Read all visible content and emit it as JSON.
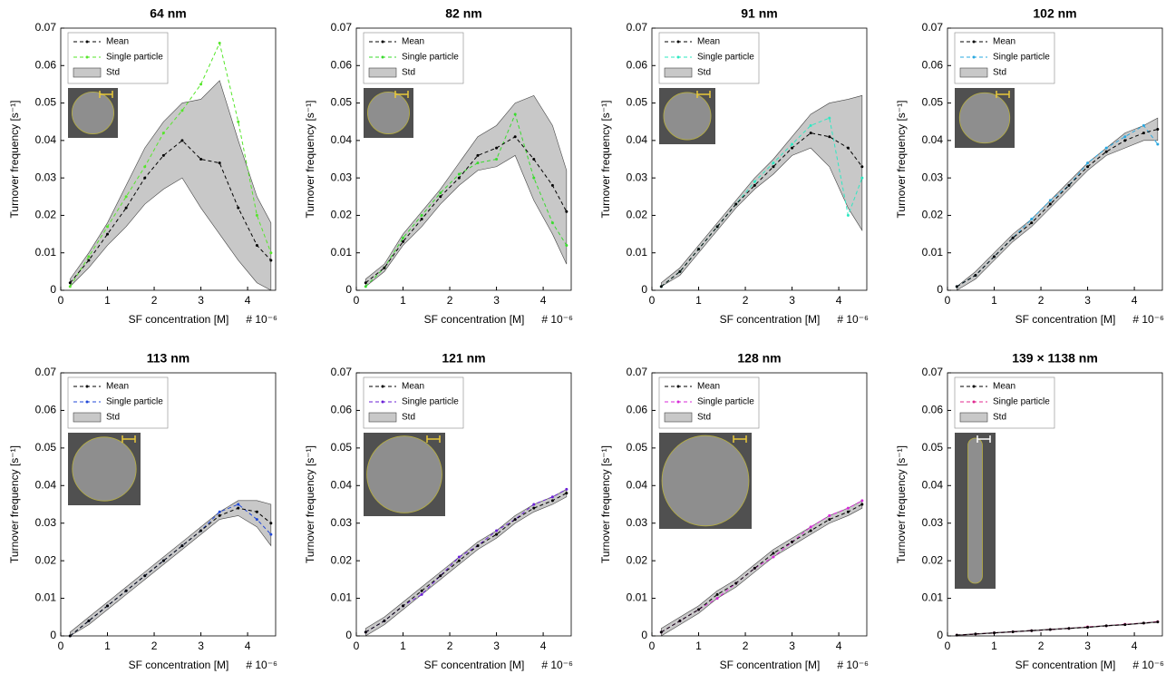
{
  "chart_data": [
    {
      "type": "line",
      "title": "64 nm",
      "title_color": "#55e62a",
      "xlabel": "SF concentration [M]",
      "x_multiplier": "# 10⁻⁶",
      "ylabel": "Turnover frequency [s⁻¹]",
      "x": [
        0.2,
        0.6,
        1.0,
        1.4,
        1.8,
        2.2,
        2.6,
        3.0,
        3.4,
        3.8,
        4.2,
        4.5
      ],
      "series": [
        {
          "name": "Mean",
          "color": "#000000",
          "values": [
            0.002,
            0.008,
            0.015,
            0.022,
            0.03,
            0.036,
            0.04,
            0.035,
            0.034,
            0.022,
            0.012,
            0.008
          ]
        },
        {
          "name": "Single particle",
          "color": "#55e62a",
          "values": [
            0.001,
            0.009,
            0.017,
            0.025,
            0.033,
            0.042,
            0.048,
            0.055,
            0.066,
            0.045,
            0.02,
            0.01
          ]
        },
        {
          "name": "Std",
          "color": "#c8c8c8",
          "upper": [
            0.003,
            0.01,
            0.018,
            0.028,
            0.038,
            0.045,
            0.05,
            0.051,
            0.056,
            0.04,
            0.025,
            0.018
          ],
          "lower": [
            0.001,
            0.006,
            0.012,
            0.017,
            0.023,
            0.027,
            0.03,
            0.022,
            0.015,
            0.008,
            0.002,
            0.0
          ]
        }
      ],
      "xlim": [
        0,
        4.6
      ],
      "xticks": [
        0,
        1,
        2,
        3,
        4
      ],
      "ylim": [
        0,
        0.07
      ],
      "yticks": [
        0,
        0.01,
        0.02,
        0.03,
        0.04,
        0.05,
        0.06,
        0.07
      ],
      "legend": "upper left"
    },
    {
      "type": "line",
      "title": "82 nm",
      "title_color": "#3adb2e",
      "xlabel": "SF concentration [M]",
      "x_multiplier": "# 10⁻⁶",
      "ylabel": "Turnover frequency [s⁻¹]",
      "x": [
        0.2,
        0.6,
        1.0,
        1.4,
        1.8,
        2.2,
        2.6,
        3.0,
        3.4,
        3.8,
        4.2,
        4.5
      ],
      "series": [
        {
          "name": "Mean",
          "color": "#000000",
          "values": [
            0.002,
            0.006,
            0.013,
            0.019,
            0.025,
            0.03,
            0.036,
            0.038,
            0.041,
            0.035,
            0.028,
            0.021
          ]
        },
        {
          "name": "Single particle",
          "color": "#3adb2e",
          "values": [
            0.001,
            0.006,
            0.014,
            0.02,
            0.026,
            0.031,
            0.034,
            0.035,
            0.047,
            0.03,
            0.018,
            0.012
          ]
        },
        {
          "name": "Std",
          "color": "#c8c8c8",
          "upper": [
            0.003,
            0.007,
            0.015,
            0.021,
            0.027,
            0.034,
            0.041,
            0.044,
            0.05,
            0.052,
            0.044,
            0.032
          ],
          "lower": [
            0.001,
            0.005,
            0.012,
            0.017,
            0.023,
            0.028,
            0.032,
            0.033,
            0.036,
            0.024,
            0.015,
            0.007
          ]
        }
      ],
      "xlim": [
        0,
        4.6
      ],
      "xticks": [
        0,
        1,
        2,
        3,
        4
      ],
      "ylim": [
        0,
        0.07
      ],
      "yticks": [
        0,
        0.01,
        0.02,
        0.03,
        0.04,
        0.05,
        0.06,
        0.07
      ],
      "legend": "upper left"
    },
    {
      "type": "line",
      "title": "91 nm",
      "title_color": "#2ee8c2",
      "xlabel": "SF concentration [M]",
      "x_multiplier": "# 10⁻⁶",
      "ylabel": "Turnover frequency [s⁻¹]",
      "x": [
        0.2,
        0.6,
        1.0,
        1.4,
        1.8,
        2.2,
        2.6,
        3.0,
        3.4,
        3.8,
        4.2,
        4.5
      ],
      "series": [
        {
          "name": "Mean",
          "color": "#000000",
          "values": [
            0.001,
            0.005,
            0.011,
            0.017,
            0.023,
            0.028,
            0.033,
            0.038,
            0.042,
            0.041,
            0.038,
            0.033
          ]
        },
        {
          "name": "Single particle",
          "color": "#2ee8c2",
          "values": [
            0.001,
            0.005,
            0.011,
            0.017,
            0.023,
            0.029,
            0.034,
            0.039,
            0.044,
            0.046,
            0.02,
            0.03
          ]
        },
        {
          "name": "Std",
          "color": "#c8c8c8",
          "upper": [
            0.002,
            0.006,
            0.012,
            0.018,
            0.024,
            0.03,
            0.035,
            0.041,
            0.047,
            0.05,
            0.051,
            0.052
          ],
          "lower": [
            0.001,
            0.004,
            0.01,
            0.016,
            0.022,
            0.027,
            0.031,
            0.036,
            0.038,
            0.033,
            0.022,
            0.016
          ]
        }
      ],
      "xlim": [
        0,
        4.6
      ],
      "xticks": [
        0,
        1,
        2,
        3,
        4
      ],
      "ylim": [
        0,
        0.07
      ],
      "yticks": [
        0,
        0.01,
        0.02,
        0.03,
        0.04,
        0.05,
        0.06,
        0.07
      ],
      "legend": "upper left"
    },
    {
      "type": "line",
      "title": "102 nm",
      "title_color": "#29a8e0",
      "xlabel": "SF concentration [M]",
      "x_multiplier": "# 10⁻⁶",
      "ylabel": "Turnover frequency [s⁻¹]",
      "x": [
        0.2,
        0.6,
        1.0,
        1.4,
        1.8,
        2.2,
        2.6,
        3.0,
        3.4,
        3.8,
        4.2,
        4.5
      ],
      "series": [
        {
          "name": "Mean",
          "color": "#000000",
          "values": [
            0.001,
            0.004,
            0.009,
            0.014,
            0.018,
            0.023,
            0.028,
            0.033,
            0.037,
            0.04,
            0.042,
            0.043
          ]
        },
        {
          "name": "Single particle",
          "color": "#29a8e0",
          "values": [
            0.001,
            0.004,
            0.009,
            0.014,
            0.019,
            0.024,
            0.028,
            0.034,
            0.038,
            0.041,
            0.044,
            0.039
          ]
        },
        {
          "name": "Std",
          "color": "#c8c8c8",
          "upper": [
            0.001,
            0.005,
            0.01,
            0.015,
            0.019,
            0.024,
            0.029,
            0.034,
            0.038,
            0.042,
            0.044,
            0.046
          ],
          "lower": [
            0.0,
            0.003,
            0.008,
            0.013,
            0.017,
            0.022,
            0.027,
            0.032,
            0.036,
            0.038,
            0.04,
            0.04
          ]
        }
      ],
      "xlim": [
        0,
        4.6
      ],
      "xticks": [
        0,
        1,
        2,
        3,
        4
      ],
      "ylim": [
        0,
        0.07
      ],
      "yticks": [
        0,
        0.01,
        0.02,
        0.03,
        0.04,
        0.05,
        0.06,
        0.07
      ],
      "legend": "upper left"
    },
    {
      "type": "line",
      "title": "113 nm",
      "title_color": "#2048d8",
      "xlabel": "SF concentration [M]",
      "x_multiplier": "# 10⁻⁶",
      "ylabel": "Turnover frequency [s⁻¹]",
      "x": [
        0.2,
        0.6,
        1.0,
        1.4,
        1.8,
        2.2,
        2.6,
        3.0,
        3.4,
        3.8,
        4.2,
        4.5
      ],
      "series": [
        {
          "name": "Mean",
          "color": "#000000",
          "values": [
            0.0,
            0.004,
            0.008,
            0.012,
            0.016,
            0.02,
            0.024,
            0.028,
            0.032,
            0.034,
            0.033,
            0.03
          ]
        },
        {
          "name": "Single particle",
          "color": "#2048d8",
          "values": [
            0.0,
            0.004,
            0.008,
            0.012,
            0.016,
            0.02,
            0.024,
            0.028,
            0.033,
            0.035,
            0.031,
            0.027
          ]
        },
        {
          "name": "Std",
          "color": "#c8c8c8",
          "upper": [
            0.001,
            0.005,
            0.009,
            0.013,
            0.017,
            0.021,
            0.025,
            0.029,
            0.033,
            0.036,
            0.036,
            0.035
          ],
          "lower": [
            0.0,
            0.003,
            0.007,
            0.011,
            0.015,
            0.019,
            0.023,
            0.027,
            0.031,
            0.032,
            0.029,
            0.024
          ]
        }
      ],
      "xlim": [
        0,
        4.6
      ],
      "xticks": [
        0,
        1,
        2,
        3,
        4
      ],
      "ylim": [
        0,
        0.07
      ],
      "yticks": [
        0,
        0.01,
        0.02,
        0.03,
        0.04,
        0.05,
        0.06,
        0.07
      ],
      "legend": "upper left"
    },
    {
      "type": "line",
      "title": "121 nm",
      "title_color": "#6a1fd6",
      "xlabel": "SF concentration [M]",
      "x_multiplier": "# 10⁻⁶",
      "ylabel": "Turnover frequency [s⁻¹]",
      "x": [
        0.2,
        0.6,
        1.0,
        1.4,
        1.8,
        2.2,
        2.6,
        3.0,
        3.4,
        3.8,
        4.2,
        4.5
      ],
      "series": [
        {
          "name": "Mean",
          "color": "#000000",
          "values": [
            0.001,
            0.004,
            0.008,
            0.012,
            0.016,
            0.02,
            0.024,
            0.027,
            0.031,
            0.034,
            0.036,
            0.038
          ]
        },
        {
          "name": "Single particle",
          "color": "#6a1fd6",
          "values": [
            0.001,
            0.004,
            0.008,
            0.011,
            0.016,
            0.021,
            0.024,
            0.028,
            0.031,
            0.035,
            0.037,
            0.039
          ]
        },
        {
          "name": "Std",
          "color": "#c8c8c8",
          "upper": [
            0.002,
            0.005,
            0.009,
            0.013,
            0.017,
            0.021,
            0.025,
            0.028,
            0.032,
            0.035,
            0.037,
            0.039
          ],
          "lower": [
            0.0,
            0.003,
            0.007,
            0.011,
            0.015,
            0.019,
            0.023,
            0.026,
            0.03,
            0.033,
            0.035,
            0.037
          ]
        }
      ],
      "xlim": [
        0,
        4.6
      ],
      "xticks": [
        0,
        1,
        2,
        3,
        4
      ],
      "ylim": [
        0,
        0.07
      ],
      "yticks": [
        0,
        0.01,
        0.02,
        0.03,
        0.04,
        0.05,
        0.06,
        0.07
      ],
      "legend": "upper left"
    },
    {
      "type": "line",
      "title": "128 nm",
      "title_color": "#d82ad8",
      "xlabel": "SF concentration [M]",
      "x_multiplier": "# 10⁻⁶",
      "ylabel": "Turnover frequency [s⁻¹]",
      "x": [
        0.2,
        0.6,
        1.0,
        1.4,
        1.8,
        2.2,
        2.6,
        3.0,
        3.4,
        3.8,
        4.2,
        4.5
      ],
      "series": [
        {
          "name": "Mean",
          "color": "#000000",
          "values": [
            0.001,
            0.004,
            0.007,
            0.011,
            0.014,
            0.018,
            0.022,
            0.025,
            0.028,
            0.031,
            0.033,
            0.035
          ]
        },
        {
          "name": "Single particle",
          "color": "#d82ad8",
          "values": [
            0.001,
            0.004,
            0.007,
            0.01,
            0.014,
            0.018,
            0.021,
            0.025,
            0.029,
            0.032,
            0.034,
            0.036
          ]
        },
        {
          "name": "Std",
          "color": "#c8c8c8",
          "upper": [
            0.002,
            0.005,
            0.008,
            0.012,
            0.015,
            0.019,
            0.023,
            0.026,
            0.029,
            0.032,
            0.034,
            0.036
          ],
          "lower": [
            0.0,
            0.003,
            0.006,
            0.01,
            0.013,
            0.017,
            0.021,
            0.024,
            0.027,
            0.03,
            0.032,
            0.034
          ]
        }
      ],
      "xlim": [
        0,
        4.6
      ],
      "xticks": [
        0,
        1,
        2,
        3,
        4
      ],
      "ylim": [
        0,
        0.07
      ],
      "yticks": [
        0,
        0.01,
        0.02,
        0.03,
        0.04,
        0.05,
        0.06,
        0.07
      ],
      "legend": "upper left"
    },
    {
      "type": "line",
      "title": "139 × 1138 nm",
      "title_color": "#e0288f",
      "xlabel": "SF concentration [M]",
      "x_multiplier": "# 10⁻⁶",
      "ylabel": "Turnover frequency [s⁻¹]",
      "x": [
        0.2,
        0.6,
        1.0,
        1.4,
        1.8,
        2.2,
        2.6,
        3.0,
        3.4,
        3.8,
        4.2,
        4.5
      ],
      "series": [
        {
          "name": "Mean",
          "color": "#000000",
          "values": [
            0.0002,
            0.0005,
            0.0008,
            0.0011,
            0.0014,
            0.0017,
            0.002,
            0.0023,
            0.0027,
            0.003,
            0.0034,
            0.0037
          ]
        },
        {
          "name": "Single particle",
          "color": "#e0288f",
          "values": [
            0.0002,
            0.0005,
            0.0008,
            0.0011,
            0.0014,
            0.0017,
            0.002,
            0.0024,
            0.0027,
            0.0031,
            0.0034,
            0.0038
          ]
        },
        {
          "name": "Std",
          "color": "#c8c8c8",
          "upper": [
            0.0003,
            0.0006,
            0.0009,
            0.0012,
            0.0015,
            0.0018,
            0.0021,
            0.0024,
            0.0028,
            0.0031,
            0.0035,
            0.0038
          ],
          "lower": [
            0.0001,
            0.0004,
            0.0007,
            0.001,
            0.0013,
            0.0016,
            0.0019,
            0.0022,
            0.0026,
            0.0029,
            0.0033,
            0.0036
          ]
        }
      ],
      "xlim": [
        0,
        4.6
      ],
      "xticks": [
        0,
        1,
        2,
        3,
        4
      ],
      "ylim": [
        0,
        0.07
      ],
      "yticks": [
        0,
        0.01,
        0.02,
        0.03,
        0.04,
        0.05,
        0.06,
        0.07
      ],
      "legend": "upper left"
    }
  ]
}
